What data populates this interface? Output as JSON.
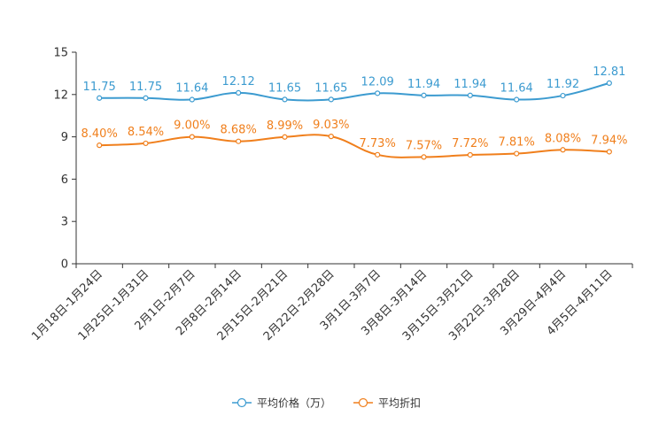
{
  "chart_data": {
    "type": "line",
    "title": "",
    "xlabel": "",
    "ylabel": "",
    "ylim": [
      0,
      15
    ],
    "yticks": [
      0,
      3,
      6,
      9,
      12,
      15
    ],
    "ytick_labels": [
      "0",
      "3",
      "6",
      "9",
      "12",
      "15"
    ],
    "grid": false,
    "legend_position": "bottom-center",
    "categories": [
      "1月18日-1月24日",
      "1月25日-1月31日",
      "2月1日-2月7日",
      "2月8日-2月14日",
      "2月15日-2月21日",
      "2月22日-2月28日",
      "3月1日-3月7日",
      "3月8日-3月14日",
      "3月15日-3月21日",
      "3月22日-3月28日",
      "3月29日-4月4日",
      "4月5日-4月11日"
    ],
    "series": [
      {
        "name": "平均价格（万）",
        "color": "#3c9bd0",
        "values": [
          11.75,
          11.75,
          11.64,
          12.12,
          11.65,
          11.65,
          12.09,
          11.94,
          11.94,
          11.64,
          11.92,
          12.81
        ],
        "labels": [
          "11.75",
          "11.75",
          "11.64",
          "12.12",
          "11.65",
          "11.65",
          "12.09",
          "11.94",
          "11.94",
          "11.64",
          "11.92",
          "12.81"
        ]
      },
      {
        "name": "平均折扣",
        "color": "#f07f1c",
        "values": [
          8.4,
          8.54,
          9.0,
          8.68,
          8.99,
          9.03,
          7.73,
          7.57,
          7.72,
          7.81,
          8.08,
          7.94
        ],
        "labels": [
          "8.40%",
          "8.54%",
          "9.00%",
          "8.68%",
          "8.99%",
          "9.03%",
          "7.73%",
          "7.57%",
          "7.72%",
          "7.81%",
          "8.08%",
          "7.94%"
        ]
      }
    ]
  }
}
